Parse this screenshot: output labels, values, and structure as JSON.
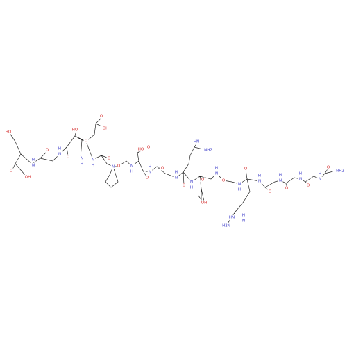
{
  "atoms": [
    "HO",
    "O",
    "OH",
    "N",
    "H",
    "O",
    "N",
    "H",
    "O",
    "HO",
    "N",
    "H",
    "O",
    "O",
    "OH",
    "N",
    "H",
    "O",
    "N",
    "O",
    "N",
    "H",
    "HO",
    "O",
    "O",
    "N",
    "H",
    "O",
    "N",
    "H",
    "HN",
    "NH2",
    "O",
    "N",
    "H",
    "O",
    "OH",
    "N",
    "H",
    "O",
    "N",
    "H",
    "HN",
    "H2N",
    "N",
    "H",
    "O",
    "N",
    "H",
    "O",
    "N",
    "H",
    "O",
    "N",
    "H",
    "O",
    "N",
    "H",
    "O",
    "NH2"
  ]
}
